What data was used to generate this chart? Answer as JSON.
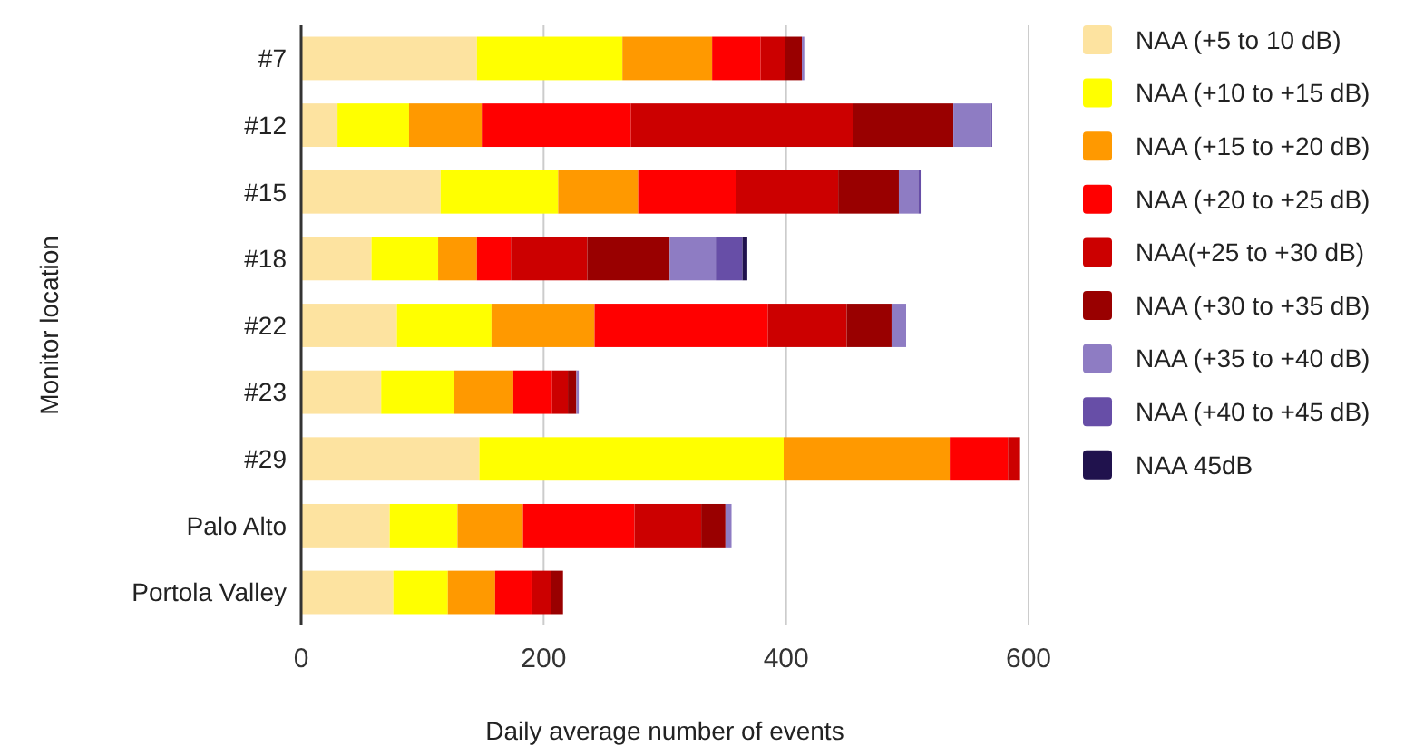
{
  "chart_data": {
    "type": "bar",
    "orientation": "horizontal",
    "stacked": true,
    "xlabel": "Daily average number of events",
    "ylabel": "Monitor location",
    "categories": [
      "#7",
      "#12",
      "#15",
      "#18",
      "#22",
      "#23",
      "#29",
      "Palo Alto",
      "Portola Valley"
    ],
    "series": [
      {
        "name": "NAA (+5 to 10 dB)",
        "color": "#fde3a0",
        "values": [
          145,
          30,
          115,
          58,
          79,
          66,
          147,
          73,
          76
        ]
      },
      {
        "name": "NAA (+10 to +15 dB)",
        "color": "#ffff00",
        "values": [
          120,
          59,
          97,
          55,
          78,
          60,
          251,
          56,
          45
        ]
      },
      {
        "name": "NAA (+15 to +20 dB)",
        "color": "#ff9900",
        "values": [
          74,
          60,
          66,
          32,
          85,
          49,
          137,
          54,
          39
        ]
      },
      {
        "name": "NAA (+20 to +25 dB)",
        "color": "#ff0000",
        "values": [
          40,
          123,
          81,
          28,
          143,
          32,
          48,
          92,
          30
        ]
      },
      {
        "name": "NAA(+25 to +30 dB)",
        "color": "#cc0000",
        "values": [
          20,
          183,
          84,
          63,
          65,
          13,
          10,
          55,
          16
        ]
      },
      {
        "name": "NAA (+30 to +35 dB)",
        "color": "#990000",
        "values": [
          14,
          83,
          50,
          68,
          37,
          7,
          0,
          20,
          10
        ]
      },
      {
        "name": "NAA (+35 to +40 dB)",
        "color": "#8e7cc3",
        "values": [
          2,
          31,
          16,
          38,
          12,
          2,
          0,
          5,
          0
        ]
      },
      {
        "name": "NAA (+40 to +45 dB)",
        "color": "#674ea7",
        "values": [
          0,
          1,
          2,
          22,
          0,
          0,
          0,
          0,
          0
        ]
      },
      {
        "name": "NAA 45dB",
        "color": "#20124d",
        "values": [
          0,
          0,
          0,
          4,
          0,
          0,
          0,
          0,
          0
        ]
      }
    ],
    "xlim": [
      0,
      600
    ],
    "xticks": [
      0,
      200,
      400,
      600
    ],
    "grid": "x",
    "legend": "right"
  }
}
